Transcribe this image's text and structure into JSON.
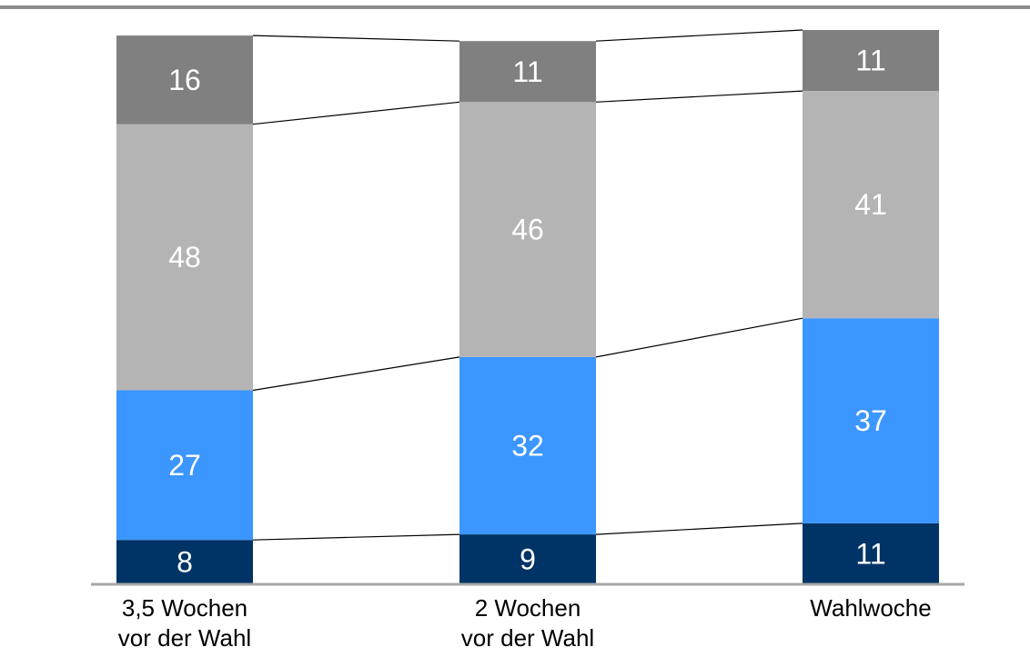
{
  "chart_data": {
    "type": "bar",
    "stacked": true,
    "categories": [
      [
        "3,5 Wochen",
        "vor der Wahl"
      ],
      [
        "2 Wochen",
        "vor der Wahl"
      ],
      [
        "Wahlwoche"
      ]
    ],
    "series": [
      {
        "values": [
          8,
          9,
          11
        ],
        "color": "#003366"
      },
      {
        "values": [
          27,
          32,
          37
        ],
        "color": "#3c96ff"
      },
      {
        "values": [
          48,
          46,
          41
        ],
        "color": "#b4b4b4"
      },
      {
        "values": [
          16,
          11,
          11
        ],
        "color": "#808080"
      }
    ],
    "connector_lines": true,
    "top_rule_color": "#8c8c8c",
    "baseline_color": "#a6a6a6"
  }
}
